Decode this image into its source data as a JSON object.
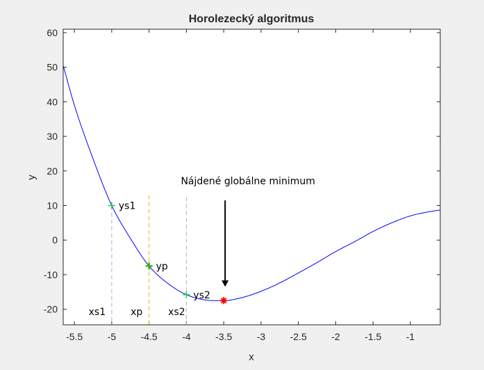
{
  "chart_data": {
    "type": "line",
    "title": "Horolezecký algoritmus",
    "xlabel": "x",
    "ylabel": "y",
    "xlim": [
      -5.65,
      -0.6
    ],
    "ylim": [
      -24.5,
      61
    ],
    "xticks": [
      -5.5,
      -5,
      -4.5,
      -4,
      -3.5,
      -3,
      -2.5,
      -2,
      -1.5,
      -1
    ],
    "xtick_labels": [
      "-5.5",
      "-5",
      "-4.5",
      "-4",
      "-3.5",
      "-3",
      "-2.5",
      "-2",
      "-1.5",
      "-1"
    ],
    "yticks": [
      60,
      50,
      40,
      30,
      20,
      10,
      0,
      -10,
      -20
    ],
    "ytick_labels": [
      "60",
      "50",
      "40",
      "30",
      "20",
      "10",
      "0",
      "-10",
      "-20"
    ],
    "grid": false,
    "colors": {
      "curve": "#0000ff",
      "side_points": "#22cc44",
      "current_point": "#33bb00",
      "minimum": "#ff0000",
      "xp_line": "#edb120",
      "side_lines": "#aab0e0"
    },
    "series": [
      {
        "x": [
          -5.65,
          -5.5,
          -5.25,
          -5.0,
          -4.75,
          -4.5,
          -4.25,
          -4.0,
          -3.75,
          -3.5,
          -3.25,
          -3.0,
          -2.75,
          -2.5,
          -2.25,
          -2.0,
          -1.75,
          -1.5,
          -1.25,
          -1.0,
          -0.75,
          -0.6
        ],
        "values": [
          50.5,
          39.0,
          23.5,
          10.0,
          0.5,
          -7.5,
          -12.5,
          -15.8,
          -17.3,
          -17.5,
          -16.6,
          -14.8,
          -12.4,
          -9.5,
          -6.5,
          -3.3,
          -0.5,
          2.5,
          5.0,
          7.0,
          8.2,
          8.7
        ]
      }
    ],
    "points": [
      {
        "x": -5.0,
        "y": 10.0,
        "label": "ys1"
      },
      {
        "x": -4.5,
        "y": -7.5,
        "label": "yp"
      },
      {
        "x": -4.0,
        "y": -15.8,
        "label": "ys2"
      }
    ],
    "minimum": {
      "x": -3.5,
      "y": -17.5
    },
    "vlines": [
      {
        "x": -5.0,
        "label": "xs1",
        "top": 10.0
      },
      {
        "x": -4.5,
        "label": "xp",
        "top": 13.0
      },
      {
        "x": -4.0,
        "label": "xs2",
        "top": 12.5
      }
    ],
    "annotation": {
      "text": "Nájdené globálne minimum",
      "x": -3.5,
      "y": 15.5
    }
  }
}
